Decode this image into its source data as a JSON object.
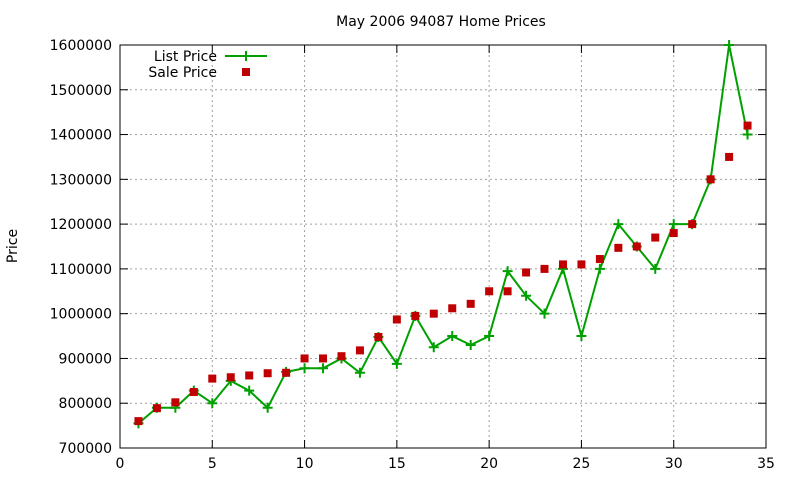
{
  "chart_data": {
    "type": "line",
    "title": "May 2006 94087 Home Prices",
    "xlabel": "",
    "ylabel": "Price",
    "xlim": [
      0,
      35
    ],
    "ylim": [
      700000,
      1600000
    ],
    "x_ticks": [
      0,
      5,
      10,
      15,
      20,
      25,
      30,
      35
    ],
    "y_ticks": [
      700000,
      800000,
      900000,
      1000000,
      1100000,
      1200000,
      1300000,
      1400000,
      1500000,
      1600000
    ],
    "grid": true,
    "legend_position": "top-left",
    "series": [
      {
        "name": "List Price",
        "style": "line-with-plus-markers",
        "color": "#00a000",
        "x": [
          1,
          2,
          3,
          4,
          5,
          6,
          7,
          8,
          9,
          10,
          11,
          12,
          13,
          14,
          15,
          16,
          17,
          18,
          19,
          20,
          21,
          22,
          23,
          24,
          25,
          26,
          27,
          28,
          29,
          30,
          31,
          32,
          33,
          34
        ],
        "values": [
          755000,
          790000,
          790000,
          828000,
          800000,
          850000,
          828000,
          790000,
          870000,
          878000,
          878000,
          900000,
          868000,
          948000,
          888000,
          995000,
          925000,
          950000,
          930000,
          950000,
          1095000,
          1040000,
          1000000,
          1100000,
          950000,
          1100000,
          1200000,
          1150000,
          1100000,
          1200000,
          1200000,
          1300000,
          1600000,
          1400000
        ]
      },
      {
        "name": "Sale Price",
        "style": "square-markers",
        "color": "#c00000",
        "x": [
          1,
          2,
          3,
          4,
          5,
          6,
          7,
          8,
          9,
          10,
          11,
          12,
          13,
          14,
          15,
          16,
          17,
          18,
          19,
          20,
          21,
          22,
          23,
          24,
          25,
          26,
          27,
          28,
          29,
          30,
          31,
          32,
          33,
          34
        ],
        "values": [
          760000,
          789000,
          802000,
          825000,
          855000,
          858000,
          862000,
          867000,
          868000,
          900000,
          900000,
          905000,
          918000,
          948000,
          987000,
          995000,
          1000000,
          1012000,
          1022000,
          1050000,
          1050000,
          1092000,
          1100000,
          1110000,
          1110000,
          1122000,
          1147000,
          1150000,
          1170000,
          1180000,
          1200000,
          1300000,
          1350000,
          1420000
        ]
      }
    ]
  }
}
